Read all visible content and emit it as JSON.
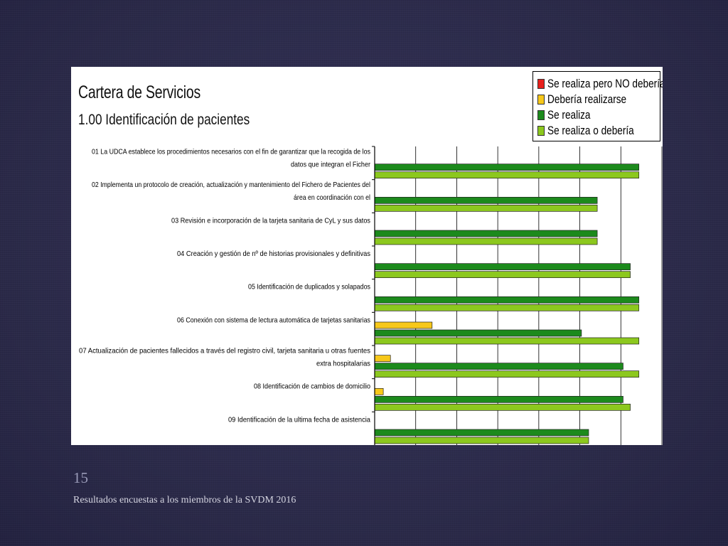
{
  "slide": {
    "number": "15",
    "caption": "Resultados encuestas a los miembros de la SVDM 2016"
  },
  "colors": {
    "series": [
      "#e8201c",
      "#f7c81a",
      "#1c8a1c",
      "#8cc81e"
    ],
    "background": "#2c2b4f"
  },
  "chart_data": {
    "type": "bar",
    "orientation": "horizontal",
    "title": "Cartera de Servicios",
    "subtitle": "1.00  Identificación de pacientes",
    "xlim": [
      0,
      1
    ],
    "grid": true,
    "legend_position": "top-right",
    "categories": [
      [
        "01 La UDCA establece los procedimientos necesarios con el fin de garantizar que la recogida de los",
        "datos que integran el Ficher"
      ],
      [
        "02 Implementa un protocolo de creación, actualización y mantenimiento del Fichero de Pacientes del",
        "área en coordinación con el"
      ],
      [
        "03 Revisión e incorporación de la tarjeta sanitaria de CyL y sus datos"
      ],
      [
        "04 Creación y gestión de nº de historias provisionales y definitivas"
      ],
      [
        "05 Identificación de duplicados y solapados"
      ],
      [
        "06 Conexión con sistema de lectura automática de tarjetas sanitarias"
      ],
      [
        "07 Actualización de pacientes fallecidos a través del registro civil, tarjeta sanitaria u otras fuentes",
        "extra hospitalarias"
      ],
      [
        "08 Identificación de cambios de domicilio"
      ],
      [
        "09 Identificación de la ultima fecha de asistencia"
      ]
    ],
    "series": [
      {
        "name": "Se realiza pero NO debería",
        "values": [
          0,
          0,
          0,
          0,
          0,
          0,
          0,
          0,
          0
        ]
      },
      {
        "name": "Debería realizarse",
        "values": [
          0,
          0,
          0,
          0,
          0,
          0.2,
          0.055,
          0.03,
          0
        ]
      },
      {
        "name": "Se realiza",
        "values": [
          0.92,
          0.775,
          0.775,
          0.89,
          0.92,
          0.72,
          0.865,
          0.865,
          0.745
        ]
      },
      {
        "name": "Se realiza o debería",
        "values": [
          0.92,
          0.775,
          0.775,
          0.89,
          0.92,
          0.92,
          0.92,
          0.89,
          0.745
        ]
      }
    ]
  }
}
